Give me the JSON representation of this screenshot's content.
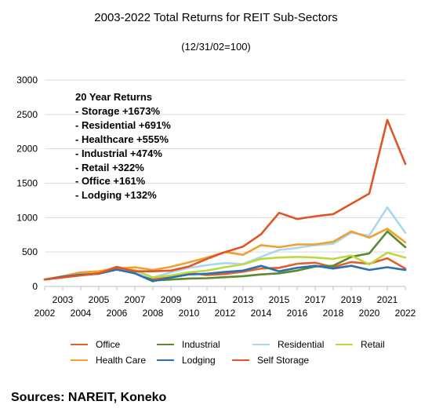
{
  "chart_data": {
    "type": "line",
    "title": "2003-2022 Total Returns for REIT Sub-Sectors",
    "subtitle": "(12/31/02=100)",
    "x_labels_upper": [
      "2003",
      "2005",
      "2007",
      "2009",
      "2011",
      "2013",
      "2015",
      "2017",
      "2019",
      "2021"
    ],
    "x_labels_lower": [
      "2002",
      "2004",
      "2006",
      "2008",
      "2010",
      "2012",
      "2014",
      "2016",
      "2018",
      "2020",
      "2022"
    ],
    "x": [
      2002,
      2003,
      2004,
      2005,
      2006,
      2007,
      2008,
      2009,
      2010,
      2011,
      2012,
      2013,
      2014,
      2015,
      2016,
      2017,
      2018,
      2019,
      2020,
      2021,
      2022
    ],
    "xlim": [
      2002,
      2022
    ],
    "ylim": [
      0,
      3000
    ],
    "yticks": [
      0,
      500,
      1000,
      1500,
      2000,
      2500,
      3000
    ],
    "grid": "horizontal",
    "legend_position": "bottom",
    "series": [
      {
        "name": "Office",
        "color": "#e06030",
        "values": [
          100,
          135,
          175,
          205,
          285,
          225,
          110,
          145,
          195,
          165,
          180,
          215,
          260,
          270,
          330,
          345,
          280,
          355,
          330,
          410,
          260
        ]
      },
      {
        "name": "Industrial",
        "color": "#5a8a2a",
        "values": [
          100,
          135,
          165,
          185,
          260,
          240,
          85,
          100,
          115,
          120,
          135,
          150,
          175,
          190,
          230,
          290,
          300,
          430,
          480,
          800,
          570
        ]
      },
      {
        "name": "Residential",
        "color": "#a8d8f0",
        "values": [
          100,
          145,
          175,
          200,
          250,
          200,
          130,
          205,
          270,
          310,
          340,
          325,
          430,
          530,
          560,
          600,
          620,
          780,
          740,
          1150,
          780
        ]
      },
      {
        "name": "Retail",
        "color": "#c0d840",
        "values": [
          100,
          140,
          180,
          220,
          275,
          240,
          130,
          160,
          205,
          230,
          280,
          320,
          400,
          420,
          430,
          420,
          400,
          450,
          320,
          490,
          420
        ]
      },
      {
        "name": "Health Care",
        "color": "#f0a030",
        "values": [
          100,
          150,
          205,
          220,
          260,
          280,
          240,
          285,
          350,
          420,
          500,
          460,
          600,
          570,
          610,
          610,
          650,
          800,
          710,
          840,
          640
        ]
      },
      {
        "name": "Lodging",
        "color": "#2a70b0",
        "values": [
          100,
          140,
          170,
          185,
          245,
          190,
          75,
          130,
          175,
          185,
          210,
          230,
          300,
          220,
          270,
          300,
          260,
          300,
          240,
          280,
          240
        ]
      },
      {
        "name": "Self Storage",
        "color": "#e05525",
        "values": [
          100,
          130,
          160,
          190,
          280,
          220,
          220,
          230,
          290,
          400,
          500,
          580,
          760,
          1070,
          980,
          1020,
          1050,
          1200,
          1350,
          2420,
          1780
        ]
      }
    ]
  },
  "annotation": {
    "lines": [
      "20 Year Returns",
      "- Storage +1673%",
      "- Residential +691%",
      "- Healthcare +555%",
      "- Industrial +474%",
      "- Retail +322%",
      "- Office +161%",
      "- Lodging +132%"
    ]
  },
  "sources": "Sources: NAREIT, Koneko"
}
